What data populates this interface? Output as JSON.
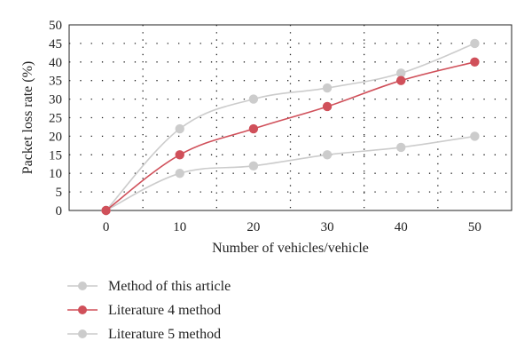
{
  "chart_data": {
    "type": "line",
    "xlabel": "Number of vehicles/vehicle",
    "ylabel": "Packet loss rate (%)",
    "x": [
      0,
      10,
      20,
      30,
      40,
      50
    ],
    "xlim": [
      -5,
      55
    ],
    "ylim": [
      0,
      50
    ],
    "x_ticks": [
      0,
      10,
      20,
      30,
      40,
      50
    ],
    "y_ticks": [
      0,
      5,
      10,
      15,
      20,
      25,
      30,
      35,
      40,
      45,
      50
    ],
    "grid": "dotted",
    "legend_position": "bottom-left",
    "series": [
      {
        "name": "Method of this article",
        "values": [
          0,
          10,
          12,
          15,
          17,
          20
        ],
        "color": "#cccccc"
      },
      {
        "name": "Literature 4 method",
        "values": [
          0,
          15,
          22,
          28,
          35,
          40
        ],
        "color": "#d0505a"
      },
      {
        "name": "Literature 5 method",
        "values": [
          0,
          22,
          30,
          33,
          37,
          45
        ],
        "color": "#cccccc"
      }
    ]
  }
}
